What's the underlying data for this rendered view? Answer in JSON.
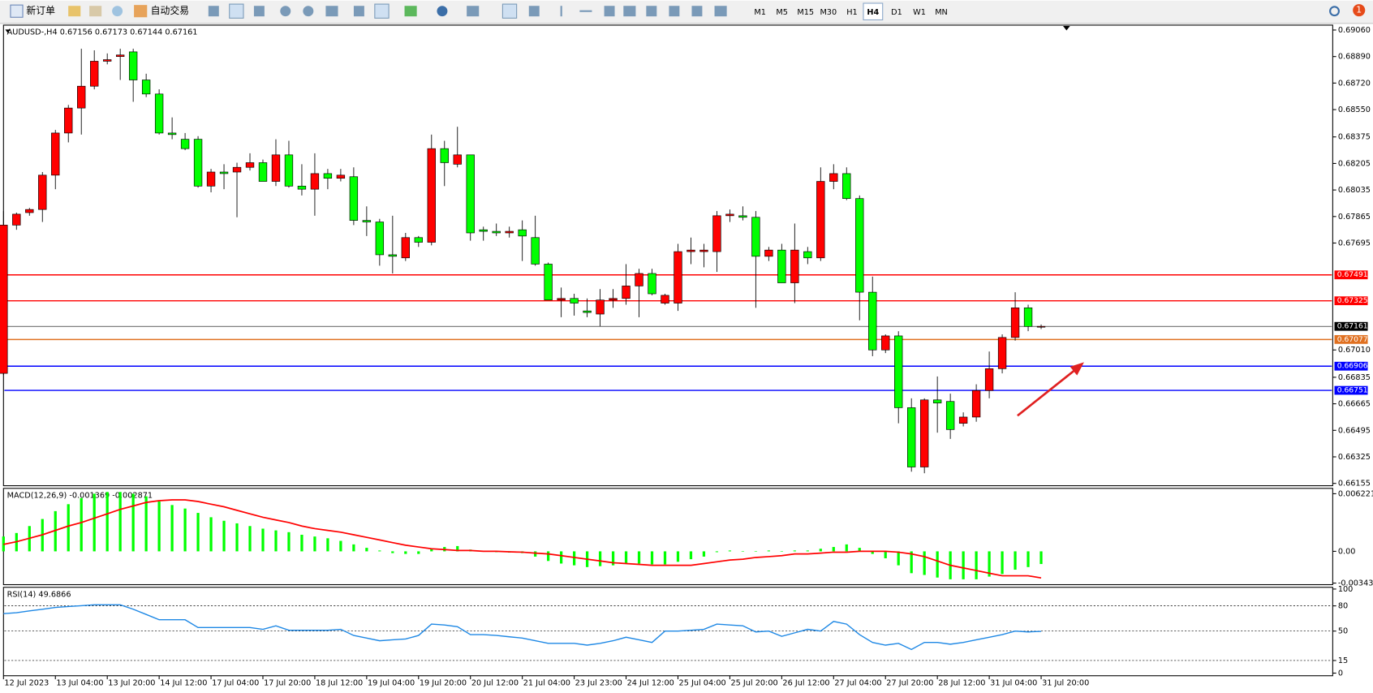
{
  "toolbar": {
    "buttons": [
      "新订单",
      "自动交易"
    ],
    "timeframes": [
      "M1",
      "M5",
      "M15",
      "M30",
      "H1",
      "H4",
      "D1",
      "W1",
      "MN"
    ],
    "selected": "H4",
    "badge": "1"
  },
  "chart_data": [
    {
      "type": "candlestick",
      "title": "AUDUSD-,H4  0.67156 0.67173 0.67144 0.67161",
      "categories": [
        "12 Jul 2023",
        null,
        null,
        null,
        "13 Jul 04:00",
        null,
        null,
        null,
        "13 Jul 20:00",
        null,
        null,
        null,
        "14 Jul 12:00",
        null,
        null,
        null,
        "17 Jul 04:00",
        null,
        null,
        null,
        "17 Jul 20:00",
        null,
        null,
        null,
        "18 Jul 12:00",
        null,
        null,
        null,
        "19 Jul 04:00",
        null,
        null,
        null,
        "19 Jul 20:00",
        null,
        null,
        null,
        "20 Jul 12:00",
        null,
        null,
        null,
        "21 Jul 04:00",
        null,
        null,
        null,
        "23 Jul 23:00",
        null,
        null,
        null,
        "24 Jul 12:00",
        null,
        null,
        null,
        "25 Jul 04:00",
        null,
        null,
        null,
        "25 Jul 20:00",
        null,
        null,
        null,
        "26 Jul 12:00",
        null,
        null,
        null,
        "27 Jul 04:00",
        null,
        null,
        null,
        "27 Jul 20:00",
        null,
        null,
        null,
        "28 Jul 12:00",
        null,
        null,
        null,
        "31 Jul 04:00",
        null,
        null,
        null,
        "31 Jul 20:00"
      ],
      "open": [
        0.6686,
        0.6781,
        0.6789,
        0.6791,
        0.6813,
        0.684,
        0.6856,
        0.687,
        0.6886,
        0.6889,
        0.6892,
        0.6874,
        0.6865,
        0.684,
        0.6836,
        0.6836,
        0.6806,
        0.6815,
        0.6815,
        0.6818,
        0.6821,
        0.6809,
        0.6826,
        0.6806,
        0.6804,
        0.6814,
        0.6811,
        0.6812,
        0.6784,
        0.6783,
        0.6762,
        0.676,
        0.6773,
        0.677,
        0.683,
        0.682,
        0.6826,
        0.6778,
        0.6777,
        0.6776,
        0.6778,
        0.6773,
        0.6756,
        0.6733,
        0.6734,
        0.6726,
        0.6724,
        0.6733,
        0.6734,
        0.6742,
        0.675,
        0.6731,
        0.6731,
        0.6764,
        0.6764,
        0.6764,
        0.6787,
        0.6787,
        0.6786,
        0.6761,
        0.6765,
        0.6744,
        0.6764,
        0.676,
        0.6809,
        0.6814,
        0.6798,
        0.6738,
        0.6701,
        0.671,
        0.6664,
        0.6626,
        0.6669,
        0.6668,
        0.6654,
        0.6658,
        0.6675,
        0.6689,
        0.6709,
        0.6728,
        0.67156
      ],
      "high": [
        0.679,
        0.6789,
        0.6792,
        0.6815,
        0.6842,
        0.6858,
        0.6894,
        0.6893,
        0.6891,
        0.6894,
        0.6894,
        0.6878,
        0.6868,
        0.685,
        0.684,
        0.6838,
        0.6817,
        0.682,
        0.6821,
        0.6827,
        0.6823,
        0.6836,
        0.6835,
        0.682,
        0.6827,
        0.6817,
        0.6817,
        0.6818,
        0.6793,
        0.6785,
        0.6787,
        0.6776,
        0.6774,
        0.6839,
        0.6835,
        0.6844,
        0.6826,
        0.678,
        0.6782,
        0.678,
        0.6784,
        0.6787,
        0.6757,
        0.6741,
        0.6737,
        0.6734,
        0.674,
        0.674,
        0.6756,
        0.6753,
        0.6753,
        0.6737,
        0.6769,
        0.6773,
        0.6769,
        0.679,
        0.6791,
        0.6793,
        0.679,
        0.6767,
        0.6769,
        0.6782,
        0.6767,
        0.6818,
        0.682,
        0.6818,
        0.68,
        0.6748,
        0.6711,
        0.6713,
        0.667,
        0.667,
        0.6684,
        0.6673,
        0.6661,
        0.6679,
        0.67,
        0.6711,
        0.6738,
        0.673,
        0.67173
      ],
      "low": [
        0.6685,
        0.6778,
        0.6787,
        0.6783,
        0.6804,
        0.6834,
        0.6839,
        0.6868,
        0.6884,
        0.6874,
        0.686,
        0.6863,
        0.6839,
        0.6836,
        0.6829,
        0.6805,
        0.6802,
        0.6804,
        0.6786,
        0.6816,
        0.6809,
        0.6806,
        0.6805,
        0.68,
        0.6787,
        0.6804,
        0.6809,
        0.6781,
        0.6774,
        0.6755,
        0.675,
        0.6758,
        0.6767,
        0.6768,
        0.6806,
        0.6818,
        0.6771,
        0.6771,
        0.6774,
        0.6773,
        0.6758,
        0.6755,
        0.6733,
        0.6722,
        0.6723,
        0.6722,
        0.6716,
        0.6728,
        0.673,
        0.6722,
        0.6736,
        0.673,
        0.6726,
        0.6756,
        0.6754,
        0.6751,
        0.6783,
        0.6784,
        0.6728,
        0.6758,
        0.6744,
        0.6731,
        0.6756,
        0.6758,
        0.6804,
        0.6797,
        0.672,
        0.6697,
        0.6699,
        0.6654,
        0.6623,
        0.6622,
        0.6648,
        0.6644,
        0.6652,
        0.6655,
        0.667,
        0.6686,
        0.6707,
        0.6713,
        0.67144
      ],
      "close": [
        0.6781,
        0.6788,
        0.6791,
        0.6813,
        0.684,
        0.6856,
        0.687,
        0.6886,
        0.6887,
        0.689,
        0.6874,
        0.6865,
        0.684,
        0.6839,
        0.683,
        0.6806,
        0.6815,
        0.6814,
        0.6818,
        0.6821,
        0.6809,
        0.6826,
        0.6806,
        0.6804,
        0.6814,
        0.6811,
        0.6813,
        0.6784,
        0.6783,
        0.6762,
        0.6761,
        0.6773,
        0.677,
        0.683,
        0.6821,
        0.6826,
        0.6776,
        0.6777,
        0.6776,
        0.6777,
        0.6774,
        0.6756,
        0.6733,
        0.6734,
        0.6731,
        0.6725,
        0.6733,
        0.6734,
        0.6742,
        0.675,
        0.6737,
        0.6736,
        0.6764,
        0.6765,
        0.6765,
        0.6787,
        0.6788,
        0.6786,
        0.6761,
        0.6765,
        0.6744,
        0.6765,
        0.676,
        0.6809,
        0.6814,
        0.6798,
        0.6738,
        0.6701,
        0.671,
        0.6664,
        0.6626,
        0.6669,
        0.6667,
        0.665,
        0.6658,
        0.6675,
        0.6689,
        0.6709,
        0.6728,
        0.6716,
        0.67161
      ],
      "up_color": "#ff0000",
      "down_color": "#00ff00",
      "ylim": [
        0.6614,
        0.6908
      ],
      "yticks": [
        {
          "value": 0.6906,
          "label": "0.69060"
        },
        {
          "value": 0.6889,
          "label": "0.68890"
        },
        {
          "value": 0.6872,
          "label": "0.68720"
        },
        {
          "value": 0.6855,
          "label": "0.68550"
        },
        0.68375,
        0.68205,
        0.68035,
        0.67865,
        0.67695,
        {
          "value": 0.6701,
          "label": "0.67010"
        },
        0.66835,
        0.66665,
        0.66495,
        0.66325,
        0.66155
      ],
      "levels": [
        {
          "value": 0.67491,
          "color": "#ff0000"
        },
        {
          "value": 0.67325,
          "color": "#ff0000"
        },
        {
          "value": 0.67161,
          "color": "#000000"
        },
        {
          "value": 0.67077,
          "color": "#e07020"
        },
        {
          "value": 0.66906,
          "color": "#0000ff"
        },
        {
          "value": 0.66751,
          "color": "#0000ff"
        }
      ]
    },
    {
      "type": "macd",
      "title": "MACD(12,26,9) -0.001369 -0.002871",
      "histogram": {
        "color": "#00ff00",
        "values": [
          0.0016,
          0.00198,
          0.00273,
          0.00349,
          0.00434,
          0.00509,
          0.00575,
          0.00622,
          0.00641,
          0.00641,
          0.00622,
          0.00594,
          0.00538,
          0.005,
          0.00462,
          0.00415,
          0.00368,
          0.0033,
          0.00302,
          0.00273,
          0.00245,
          0.00226,
          0.00207,
          0.00179,
          0.0016,
          0.00141,
          0.00113,
          0.00075,
          0.00038,
          9e-05,
          -0.00019,
          -0.00028,
          -0.00028,
          0.00028,
          0.00047,
          0.00057,
          0.00019,
          0,
          -9e-05,
          -0.00014,
          -0.00019,
          -0.00057,
          -0.00104,
          -0.00132,
          -0.00151,
          -0.0017,
          -0.0016,
          -0.00151,
          -0.00132,
          -0.00132,
          -0.00141,
          -0.00141,
          -0.00113,
          -0.00085,
          -0.00057,
          -9e-05,
          9e-05,
          0,
          0,
          9e-05,
          0,
          9e-05,
          9e-05,
          0.00028,
          0.00047,
          0.00075,
          0.00038,
          -0.00028,
          -0.00075,
          -0.00151,
          -0.00236,
          -0.00255,
          -0.00283,
          -0.00302,
          -0.00302,
          -0.00302,
          -0.00273,
          -0.00245,
          -0.00198,
          -0.0017,
          -0.001369
        ]
      },
      "signal": {
        "color": "#ff0000",
        "values": [
          0.00075,
          0.00104,
          0.00141,
          0.00179,
          0.00226,
          0.00273,
          0.00311,
          0.00358,
          0.00405,
          0.00453,
          0.0049,
          0.00528,
          0.00547,
          0.00556,
          0.00556,
          0.00538,
          0.00509,
          0.00481,
          0.00443,
          0.00405,
          0.00368,
          0.00339,
          0.00311,
          0.00273,
          0.00245,
          0.00226,
          0.00207,
          0.00179,
          0.00151,
          0.00123,
          0.00094,
          0.00066,
          0.00047,
          0.00028,
          0.00019,
          9e-05,
          9e-05,
          0,
          0,
          -5e-05,
          -9e-05,
          -0.00019,
          -0.00028,
          -0.00047,
          -0.00066,
          -0.00085,
          -0.00104,
          -0.00123,
          -0.00132,
          -0.00141,
          -0.00151,
          -0.00151,
          -0.00151,
          -0.00151,
          -0.00132,
          -0.00113,
          -0.00094,
          -0.00085,
          -0.00066,
          -0.00057,
          -0.00047,
          -0.00028,
          -0.00028,
          -0.00019,
          -9e-05,
          -9e-05,
          0,
          0,
          0,
          -9e-05,
          -0.00028,
          -0.00057,
          -0.00104,
          -0.00151,
          -0.00179,
          -0.00207,
          -0.00236,
          -0.00264,
          -0.00264,
          -0.00264,
          -0.002871
        ]
      },
      "ylim": [
        -0.0036,
        0.0068
      ],
      "yticks": [
        0.006221,
        {
          "value": 0,
          "label": "0.00"
        },
        -0.00343
      ]
    },
    {
      "type": "rsi",
      "title": "RSI(14) 49.6866",
      "color": "#1e88e5",
      "values": [
        70.8,
        71.9,
        74,
        76,
        78.1,
        79.2,
        80.2,
        81.3,
        81.3,
        81.3,
        76,
        69.8,
        63.5,
        63.5,
        63.5,
        54.2,
        54.2,
        54.2,
        54.2,
        54.2,
        52.1,
        56.3,
        51,
        51,
        51,
        51,
        52.1,
        44.8,
        41.7,
        38.5,
        39.6,
        40.6,
        44.8,
        58.3,
        57.3,
        55.2,
        45.8,
        45.8,
        44.8,
        43.2,
        41.7,
        38.5,
        35.4,
        35.4,
        35.4,
        33.3,
        35.4,
        38.5,
        42.7,
        39.6,
        36.5,
        50,
        50,
        51,
        52.1,
        58.3,
        57.3,
        56.3,
        49,
        50,
        43.8,
        47.9,
        52.1,
        50,
        61.5,
        58.3,
        45.8,
        36.5,
        33.3,
        35.4,
        28.1,
        36.5,
        36.5,
        34.4,
        36.5,
        39.6,
        42.7,
        45.8,
        50,
        49,
        49.6866
      ],
      "ylim": [
        0,
        100
      ],
      "yticks": [
        100,
        80,
        50,
        15,
        0
      ]
    }
  ]
}
